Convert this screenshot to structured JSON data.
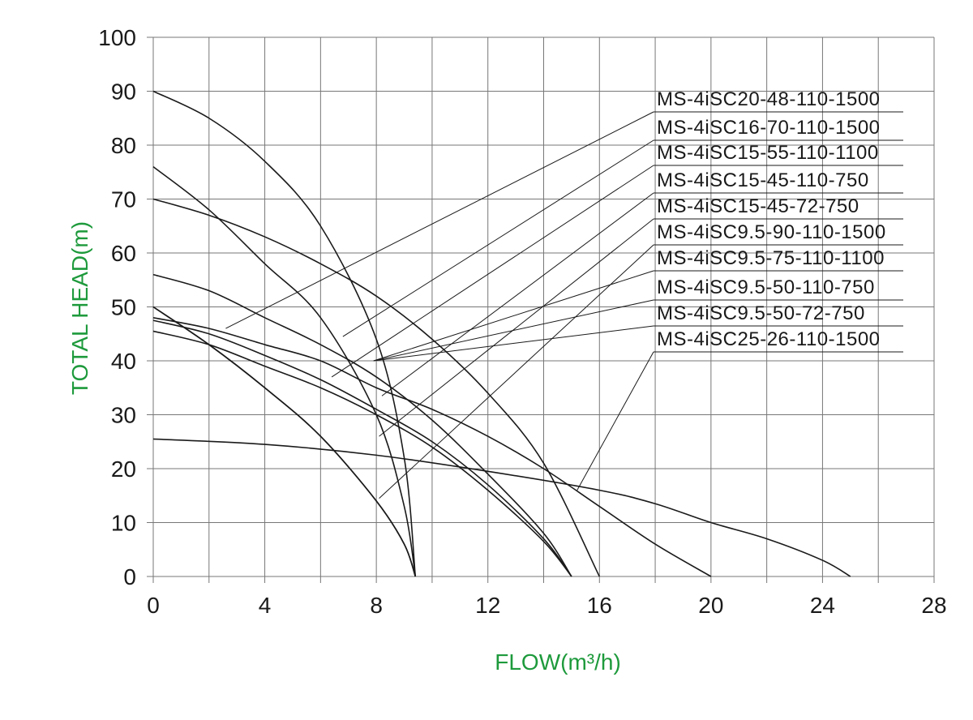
{
  "chart_data": {
    "type": "line",
    "xlabel": "FLOW(m³/h)",
    "ylabel": "TOTAL HEAD(m)",
    "xlim": [
      0,
      28
    ],
    "ylim": [
      0,
      100
    ],
    "x_ticks": [
      "0",
      "4",
      "8",
      "12",
      "16",
      "20",
      "24",
      "28"
    ],
    "y_ticks": [
      "0",
      "10",
      "20",
      "30",
      "40",
      "50",
      "60",
      "70",
      "80",
      "90",
      "100"
    ],
    "grid": true,
    "axis_title_color": "#1e9a3c",
    "series": [
      {
        "name": "MS-4iSC20-48-110-1500",
        "points": [
          [
            0,
            48
          ],
          [
            2,
            46
          ],
          [
            4,
            43
          ],
          [
            6,
            40
          ],
          [
            8,
            35
          ],
          [
            10,
            31
          ],
          [
            12,
            26
          ],
          [
            14,
            20
          ],
          [
            16,
            13
          ],
          [
            18,
            6
          ],
          [
            20,
            0
          ]
        ]
      },
      {
        "name": "MS-4iSC16-70-110-1500",
        "points": [
          [
            0,
            70
          ],
          [
            2,
            67
          ],
          [
            4,
            63
          ],
          [
            6,
            58
          ],
          [
            8,
            52
          ],
          [
            10,
            44
          ],
          [
            12,
            34
          ],
          [
            14,
            21
          ],
          [
            16,
            0
          ]
        ]
      },
      {
        "name": "MS-4iSC15-55-110-1100",
        "points": [
          [
            0,
            56
          ],
          [
            2,
            53
          ],
          [
            4,
            48
          ],
          [
            6,
            43
          ],
          [
            8,
            37
          ],
          [
            10,
            29
          ],
          [
            12,
            19
          ],
          [
            14,
            8
          ],
          [
            15,
            0
          ]
        ]
      },
      {
        "name": "MS-4iSC15-45-110-750",
        "points": [
          [
            0,
            47.5
          ],
          [
            2,
            45
          ],
          [
            4,
            41
          ],
          [
            6,
            36.5
          ],
          [
            8,
            31
          ],
          [
            10,
            25
          ],
          [
            12,
            17
          ],
          [
            14,
            7
          ],
          [
            15,
            0
          ]
        ]
      },
      {
        "name": "MS-4iSC15-45-72-750",
        "points": [
          [
            0,
            45.5
          ],
          [
            2,
            43
          ],
          [
            4,
            39
          ],
          [
            6,
            35
          ],
          [
            8,
            30
          ],
          [
            10,
            24
          ],
          [
            12,
            16
          ],
          [
            14,
            6.5
          ],
          [
            15,
            0
          ]
        ]
      },
      {
        "name": "MS-4iSC9.5-90-110-1500",
        "points": [
          [
            0,
            90
          ],
          [
            2,
            85
          ],
          [
            4,
            77
          ],
          [
            6,
            65
          ],
          [
            8,
            44
          ],
          [
            9,
            22
          ],
          [
            9.4,
            0
          ]
        ]
      },
      {
        "name": "MS-4iSC9.5-75-110-1100",
        "points": [
          [
            0,
            76
          ],
          [
            2,
            68
          ],
          [
            4,
            58
          ],
          [
            6,
            48
          ],
          [
            8,
            30
          ],
          [
            9,
            13
          ],
          [
            9.4,
            0
          ]
        ]
      },
      {
        "name": "MS-4iSC9.5-50-110-750",
        "points": [
          [
            0,
            50
          ],
          [
            2,
            43
          ],
          [
            4,
            35
          ],
          [
            6,
            26
          ],
          [
            8,
            14
          ],
          [
            9,
            6
          ],
          [
            9.4,
            0
          ]
        ]
      },
      {
        "name": "MS-4iSC9.5-50-72-750",
        "points": [
          [
            0,
            50
          ],
          [
            2,
            43
          ],
          [
            4,
            35
          ],
          [
            6,
            26
          ],
          [
            8,
            14
          ],
          [
            9,
            6
          ],
          [
            9.4,
            0
          ]
        ]
      },
      {
        "name": "MS-4iSC25-26-110-1500",
        "points": [
          [
            0,
            25.5
          ],
          [
            4,
            24.5
          ],
          [
            8,
            22.5
          ],
          [
            12,
            19.5
          ],
          [
            16,
            16
          ],
          [
            18,
            13.5
          ],
          [
            20,
            10
          ],
          [
            22,
            7
          ],
          [
            24,
            3
          ],
          [
            25,
            0
          ]
        ]
      }
    ],
    "legend": {
      "labels": [
        "MS-4iSC20-48-110-1500",
        "MS-4iSC16-70-110-1500",
        "MS-4iSC15-55-110-1100",
        "MS-4iSC15-45-110-750",
        "MS-4iSC15-45-72-750",
        "MS-4iSC9.5-90-110-1500",
        "MS-4iSC9.5-75-110-1100",
        "MS-4iSC9.5-50-110-750",
        "MS-4iSC9.5-50-72-750",
        "MS-4iSC25-26-110-1500"
      ],
      "placement": "right",
      "leader_targets": [
        [
          2.6,
          46
        ],
        [
          6.8,
          44.5
        ],
        [
          6.4,
          37
        ],
        [
          8.2,
          33.5
        ],
        [
          8.1,
          26
        ],
        [
          8.1,
          14.5
        ],
        [
          7.9,
          40
        ],
        [
          7.9,
          40
        ],
        [
          7.9,
          40
        ],
        [
          15.2,
          16
        ]
      ]
    }
  }
}
